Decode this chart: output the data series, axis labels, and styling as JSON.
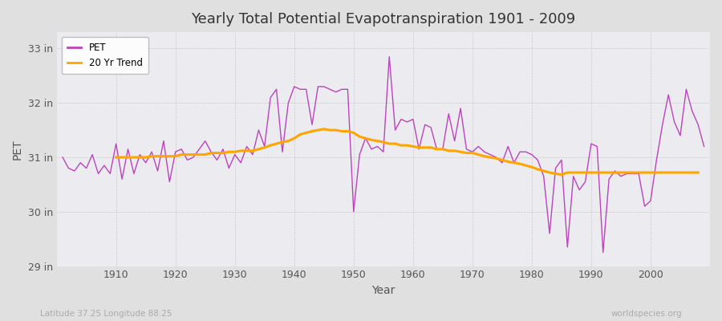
{
  "title": "Yearly Total Potential Evapotranspiration 1901 - 2009",
  "xlabel": "Year",
  "ylabel": "PET",
  "lat_lon_label": "Latitude 37.25 Longitude 88.25",
  "watermark": "worldspecies.org",
  "pet_color": "#BB44BB",
  "trend_color": "#FFA500",
  "ylim": [
    29.0,
    33.3
  ],
  "yticks": [
    29,
    30,
    31,
    32,
    33
  ],
  "ytick_labels": [
    "29 in",
    "30 in",
    "31 in",
    "32 in",
    "33 in"
  ],
  "years": [
    1901,
    1902,
    1903,
    1904,
    1905,
    1906,
    1907,
    1908,
    1909,
    1910,
    1911,
    1912,
    1913,
    1914,
    1915,
    1916,
    1917,
    1918,
    1919,
    1920,
    1921,
    1922,
    1923,
    1924,
    1925,
    1926,
    1927,
    1928,
    1929,
    1930,
    1931,
    1932,
    1933,
    1934,
    1935,
    1936,
    1937,
    1938,
    1939,
    1940,
    1941,
    1942,
    1943,
    1944,
    1945,
    1946,
    1947,
    1948,
    1949,
    1950,
    1951,
    1952,
    1953,
    1954,
    1955,
    1956,
    1957,
    1958,
    1959,
    1960,
    1961,
    1962,
    1963,
    1964,
    1965,
    1966,
    1967,
    1968,
    1969,
    1970,
    1971,
    1972,
    1973,
    1974,
    1975,
    1976,
    1977,
    1978,
    1979,
    1980,
    1981,
    1982,
    1983,
    1984,
    1985,
    1986,
    1987,
    1988,
    1989,
    1990,
    1991,
    1992,
    1993,
    1994,
    1995,
    1996,
    1997,
    1998,
    1999,
    2000,
    2001,
    2002,
    2003,
    2004,
    2005,
    2006,
    2007,
    2008,
    2009
  ],
  "pet_values": [
    31.0,
    30.8,
    30.75,
    30.9,
    30.8,
    31.05,
    30.7,
    30.85,
    30.7,
    31.25,
    30.6,
    31.15,
    30.7,
    31.05,
    30.9,
    31.1,
    30.75,
    31.3,
    30.55,
    31.1,
    31.15,
    30.95,
    31.0,
    31.15,
    31.3,
    31.1,
    30.95,
    31.15,
    30.8,
    31.05,
    30.9,
    31.2,
    31.05,
    31.5,
    31.2,
    32.1,
    32.25,
    31.1,
    32.0,
    32.3,
    32.25,
    32.25,
    31.6,
    32.3,
    32.3,
    32.25,
    32.2,
    32.25,
    32.25,
    30.0,
    31.05,
    31.35,
    31.15,
    31.2,
    31.1,
    32.85,
    31.5,
    31.7,
    31.65,
    31.7,
    31.15,
    31.6,
    31.55,
    31.15,
    31.15,
    31.8,
    31.3,
    31.9,
    31.15,
    31.1,
    31.2,
    31.1,
    31.05,
    31.0,
    30.9,
    31.2,
    30.9,
    31.1,
    31.1,
    31.05,
    30.95,
    30.65,
    29.6,
    30.8,
    30.95,
    29.35,
    30.65,
    30.4,
    30.55,
    31.25,
    31.2,
    29.25,
    30.6,
    30.75,
    30.65,
    30.7,
    30.7,
    30.7,
    30.1,
    30.2,
    30.95,
    31.6,
    32.15,
    31.65,
    31.4,
    32.25,
    31.85,
    31.6,
    31.2
  ],
  "trend_values": [
    null,
    null,
    null,
    null,
    null,
    null,
    null,
    null,
    null,
    31.0,
    31.0,
    31.0,
    31.0,
    31.0,
    31.0,
    31.02,
    31.02,
    31.02,
    31.02,
    31.02,
    31.05,
    31.05,
    31.05,
    31.05,
    31.05,
    31.08,
    31.08,
    31.08,
    31.1,
    31.1,
    31.12,
    31.12,
    31.12,
    31.15,
    31.18,
    31.22,
    31.25,
    31.28,
    31.3,
    31.35,
    31.42,
    31.45,
    31.48,
    31.5,
    31.52,
    31.5,
    31.5,
    31.48,
    31.48,
    31.45,
    31.38,
    31.35,
    31.32,
    31.3,
    31.28,
    31.25,
    31.25,
    31.22,
    31.22,
    31.2,
    31.18,
    31.18,
    31.18,
    31.15,
    31.15,
    31.12,
    31.12,
    31.1,
    31.08,
    31.08,
    31.05,
    31.02,
    31.0,
    30.98,
    30.95,
    30.92,
    30.9,
    30.88,
    30.85,
    30.82,
    30.78,
    30.75,
    30.72,
    30.7,
    30.68,
    30.72,
    30.72,
    30.72,
    30.72,
    30.72,
    30.72,
    30.72,
    30.72,
    30.72,
    30.72,
    30.72,
    30.72,
    30.72,
    30.72,
    30.72,
    30.72,
    30.72,
    30.72,
    30.72,
    30.72,
    30.72,
    30.72,
    30.72
  ]
}
